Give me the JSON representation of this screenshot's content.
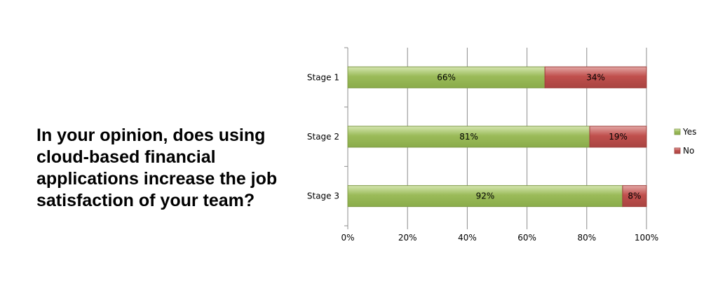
{
  "question": "In your opinion, does using cloud-based financial applications increase the job satisfaction of your team?",
  "colors": {
    "yes": "#9bbb59",
    "no": "#c0504d",
    "grid": "#8c8c8c"
  },
  "chart_data": {
    "type": "bar",
    "orientation": "horizontal",
    "stacked": "percent",
    "categories": [
      "Stage 1",
      "Stage 2",
      "Stage 3"
    ],
    "series": [
      {
        "name": "Yes",
        "values": [
          66,
          81,
          92
        ],
        "labels": [
          "66%",
          "81%",
          "92%"
        ]
      },
      {
        "name": "No",
        "values": [
          34,
          19,
          8
        ],
        "labels": [
          "34%",
          "19%",
          "8%"
        ]
      }
    ],
    "xlim": [
      0,
      100
    ],
    "xticks": [
      "0%",
      "20%",
      "40%",
      "60%",
      "80%",
      "100%"
    ],
    "grid": true,
    "legend": "right"
  }
}
